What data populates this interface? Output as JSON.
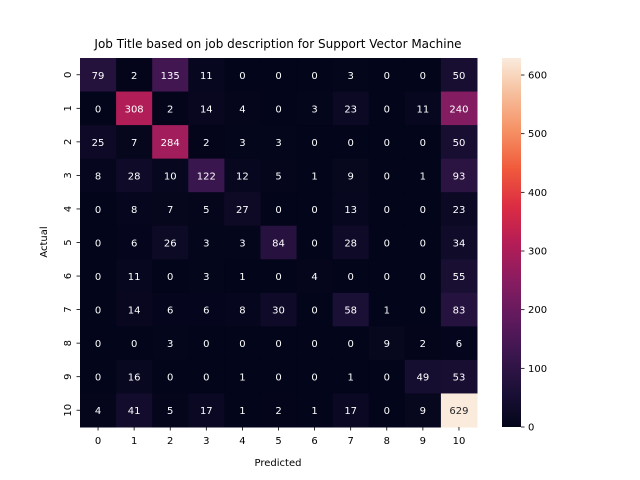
{
  "chart_data": {
    "type": "heatmap",
    "title": "Job Title based on job description for Support Vector Machine",
    "xlabel": "Predicted",
    "ylabel": "Actual",
    "x_categories": [
      "0",
      "1",
      "2",
      "3",
      "4",
      "5",
      "6",
      "7",
      "8",
      "9",
      "10"
    ],
    "y_categories": [
      "0",
      "1",
      "2",
      "3",
      "4",
      "5",
      "6",
      "7",
      "8",
      "9",
      "10"
    ],
    "values": [
      [
        79,
        2,
        135,
        11,
        0,
        0,
        0,
        3,
        0,
        0,
        50
      ],
      [
        0,
        308,
        2,
        14,
        4,
        0,
        3,
        23,
        0,
        11,
        240
      ],
      [
        25,
        7,
        284,
        2,
        3,
        3,
        0,
        0,
        0,
        0,
        50
      ],
      [
        8,
        28,
        10,
        122,
        12,
        5,
        1,
        9,
        0,
        1,
        93
      ],
      [
        0,
        8,
        7,
        5,
        27,
        0,
        0,
        13,
        0,
        0,
        23
      ],
      [
        0,
        6,
        26,
        3,
        3,
        84,
        0,
        28,
        0,
        0,
        34
      ],
      [
        0,
        11,
        0,
        3,
        1,
        0,
        4,
        0,
        0,
        0,
        55
      ],
      [
        0,
        14,
        6,
        6,
        8,
        30,
        0,
        58,
        1,
        0,
        83
      ],
      [
        0,
        0,
        3,
        0,
        0,
        0,
        0,
        0,
        9,
        2,
        6
      ],
      [
        0,
        16,
        0,
        0,
        1,
        0,
        0,
        1,
        0,
        49,
        53
      ],
      [
        4,
        41,
        5,
        17,
        1,
        2,
        1,
        17,
        0,
        9,
        629
      ]
    ],
    "colorbar": {
      "min": 0,
      "max": 629,
      "ticks": [
        0,
        100,
        200,
        300,
        400,
        500,
        600
      ],
      "colormap": "rocket"
    },
    "grid": false
  }
}
